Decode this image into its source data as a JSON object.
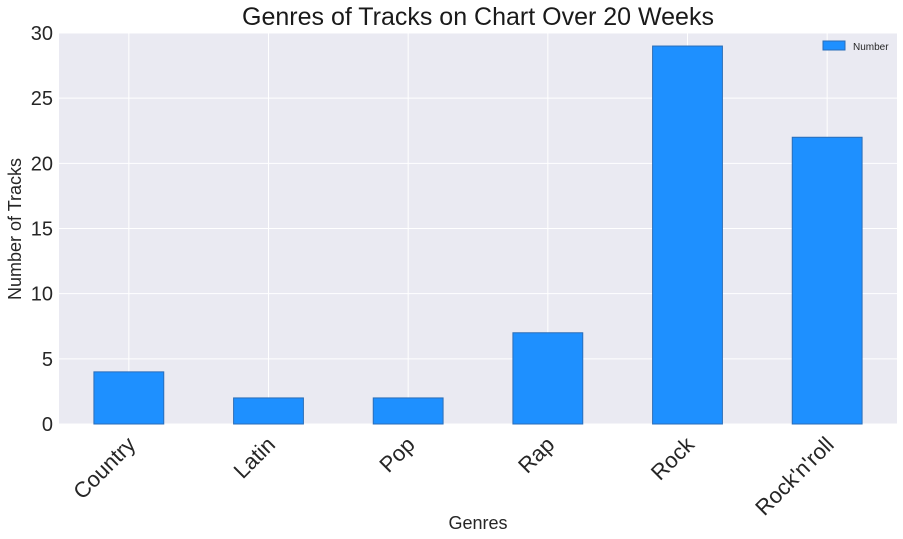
{
  "chart_data": {
    "type": "bar",
    "title": "Genres of Tracks on Chart Over 20 Weeks",
    "xlabel": "Genres",
    "ylabel": "Number of Tracks",
    "categories": [
      "Country",
      "Latin",
      "Pop",
      "Rap",
      "Rock",
      "Rock'n'roll"
    ],
    "series": [
      {
        "name": "Number",
        "values": [
          4,
          2,
          2,
          7,
          29,
          22
        ]
      }
    ],
    "ylim": [
      0,
      30
    ],
    "yticks": [
      "0",
      "5",
      "10",
      "15",
      "20",
      "25",
      "30"
    ],
    "grid": true,
    "legend": "top-right",
    "colors": {
      "bar": "#1e90ff",
      "bar_edge": "#2a6db8",
      "plot_bg": "#eaeaf2",
      "grid": "#ffffff"
    }
  }
}
